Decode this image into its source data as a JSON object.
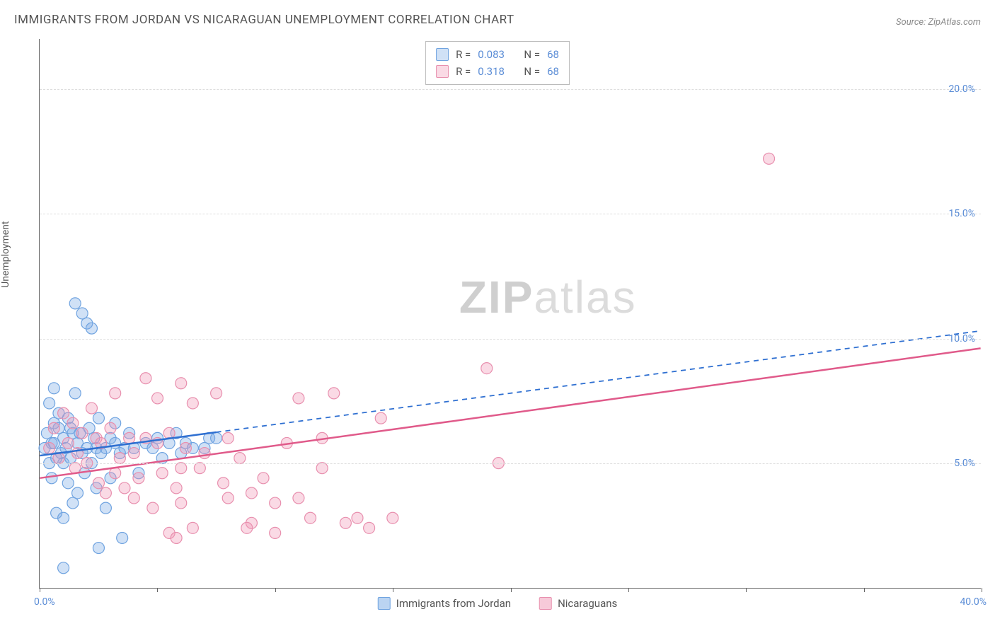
{
  "title": "IMMIGRANTS FROM JORDAN VS NICARAGUAN UNEMPLOYMENT CORRELATION CHART",
  "source": "Source: ZipAtlas.com",
  "ylabel": "Unemployment",
  "watermark": {
    "bold": "ZIP",
    "light": "atlas"
  },
  "type": "scatter",
  "xlim": [
    0,
    40
  ],
  "ylim": [
    0,
    22
  ],
  "ytick_positions": [
    5,
    10,
    15,
    20
  ],
  "ytick_labels": [
    "5.0%",
    "10.0%",
    "15.0%",
    "20.0%"
  ],
  "xtick_positions": [
    0,
    5,
    10,
    15,
    20,
    25,
    30,
    35,
    40
  ],
  "xaxis_min_label": "0.0%",
  "xaxis_max_label": "40.0%",
  "grid_color": "#dddddd",
  "axis_color": "#666666",
  "label_color": "#5b8dd6",
  "background": "#ffffff",
  "series": [
    {
      "name": "Immigrants from Jordan",
      "color_fill": "rgba(120,170,230,0.35)",
      "color_stroke": "#6fa3e0",
      "line_color": "#2e6fd1",
      "marker_radius": 8,
      "R": "0.083",
      "N": "68",
      "regression": {
        "x1": 0,
        "y1": 5.3,
        "x2": 40,
        "y2": 10.3,
        "solid_until_x": 7.5
      },
      "points": [
        [
          0.2,
          5.6
        ],
        [
          0.3,
          6.2
        ],
        [
          0.4,
          5.0
        ],
        [
          0.4,
          7.4
        ],
        [
          0.5,
          5.8
        ],
        [
          0.5,
          4.4
        ],
        [
          0.6,
          6.6
        ],
        [
          0.6,
          8.0
        ],
        [
          0.7,
          5.2
        ],
        [
          0.7,
          3.0
        ],
        [
          0.8,
          6.4
        ],
        [
          0.8,
          7.0
        ],
        [
          0.9,
          5.4
        ],
        [
          1.0,
          5.0
        ],
        [
          1.0,
          6.0
        ],
        [
          1.0,
          2.8
        ],
        [
          1.1,
          5.6
        ],
        [
          1.2,
          6.8
        ],
        [
          1.2,
          4.2
        ],
        [
          1.3,
          5.2
        ],
        [
          1.4,
          3.4
        ],
        [
          1.4,
          6.2
        ],
        [
          1.5,
          7.8
        ],
        [
          1.5,
          11.4
        ],
        [
          1.6,
          5.8
        ],
        [
          1.6,
          3.8
        ],
        [
          1.7,
          6.2
        ],
        [
          1.8,
          11.0
        ],
        [
          1.8,
          5.4
        ],
        [
          1.9,
          4.6
        ],
        [
          2.0,
          5.6
        ],
        [
          2.0,
          10.6
        ],
        [
          2.1,
          6.4
        ],
        [
          2.2,
          5.0
        ],
        [
          2.2,
          10.4
        ],
        [
          2.3,
          6.0
        ],
        [
          2.4,
          5.6
        ],
        [
          2.4,
          4.0
        ],
        [
          2.5,
          6.8
        ],
        [
          2.6,
          5.4
        ],
        [
          2.8,
          5.6
        ],
        [
          2.8,
          3.2
        ],
        [
          3.0,
          6.0
        ],
        [
          3.0,
          4.4
        ],
        [
          3.2,
          5.8
        ],
        [
          3.2,
          6.6
        ],
        [
          3.4,
          5.4
        ],
        [
          3.5,
          2.0
        ],
        [
          3.6,
          5.6
        ],
        [
          3.8,
          6.2
        ],
        [
          4.0,
          5.6
        ],
        [
          4.2,
          4.6
        ],
        [
          4.5,
          5.8
        ],
        [
          4.8,
          5.6
        ],
        [
          5.0,
          6.0
        ],
        [
          5.2,
          5.2
        ],
        [
          5.5,
          5.8
        ],
        [
          5.8,
          6.2
        ],
        [
          6.0,
          5.4
        ],
        [
          6.2,
          5.8
        ],
        [
          6.5,
          5.6
        ],
        [
          7.0,
          5.6
        ],
        [
          7.2,
          6.0
        ],
        [
          7.5,
          6.0
        ],
        [
          1.0,
          0.8
        ],
        [
          2.5,
          1.6
        ],
        [
          0.6,
          5.8
        ],
        [
          1.3,
          6.4
        ]
      ]
    },
    {
      "name": "Nicaraguans",
      "color_fill": "rgba(240,150,180,0.35)",
      "color_stroke": "#e88fae",
      "line_color": "#e05a8a",
      "marker_radius": 8,
      "R": "0.318",
      "N": "68",
      "regression": {
        "x1": 0,
        "y1": 4.4,
        "x2": 40,
        "y2": 9.6,
        "solid_until_x": 40
      },
      "points": [
        [
          0.4,
          5.6
        ],
        [
          0.6,
          6.4
        ],
        [
          0.8,
          5.2
        ],
        [
          1.0,
          7.0
        ],
        [
          1.2,
          5.8
        ],
        [
          1.4,
          6.6
        ],
        [
          1.5,
          4.8
        ],
        [
          1.6,
          5.4
        ],
        [
          1.8,
          6.2
        ],
        [
          2.0,
          5.0
        ],
        [
          2.2,
          7.2
        ],
        [
          2.4,
          6.0
        ],
        [
          2.5,
          4.2
        ],
        [
          2.6,
          5.8
        ],
        [
          2.8,
          3.8
        ],
        [
          3.0,
          6.4
        ],
        [
          3.2,
          4.6
        ],
        [
          3.2,
          7.8
        ],
        [
          3.4,
          5.2
        ],
        [
          3.6,
          4.0
        ],
        [
          3.8,
          6.0
        ],
        [
          4.0,
          3.6
        ],
        [
          4.0,
          5.4
        ],
        [
          4.2,
          4.4
        ],
        [
          4.5,
          8.4
        ],
        [
          4.5,
          6.0
        ],
        [
          4.8,
          3.2
        ],
        [
          5.0,
          5.8
        ],
        [
          5.0,
          7.6
        ],
        [
          5.2,
          4.6
        ],
        [
          5.5,
          2.2
        ],
        [
          5.5,
          6.2
        ],
        [
          5.8,
          4.0
        ],
        [
          6.0,
          8.2
        ],
        [
          6.0,
          3.4
        ],
        [
          6.2,
          5.6
        ],
        [
          6.5,
          7.4
        ],
        [
          6.5,
          2.4
        ],
        [
          6.8,
          4.8
        ],
        [
          7.0,
          5.4
        ],
        [
          7.5,
          7.8
        ],
        [
          7.8,
          4.2
        ],
        [
          8.0,
          3.6
        ],
        [
          8.0,
          6.0
        ],
        [
          8.5,
          5.2
        ],
        [
          9.0,
          3.8
        ],
        [
          9.0,
          2.6
        ],
        [
          9.5,
          4.4
        ],
        [
          10.0,
          3.4
        ],
        [
          10.0,
          2.2
        ],
        [
          10.5,
          5.8
        ],
        [
          11.0,
          7.6
        ],
        [
          11.0,
          3.6
        ],
        [
          11.5,
          2.8
        ],
        [
          12.0,
          6.0
        ],
        [
          12.5,
          7.8
        ],
        [
          13.0,
          2.6
        ],
        [
          13.5,
          2.8
        ],
        [
          14.0,
          2.4
        ],
        [
          14.5,
          6.8
        ],
        [
          15.0,
          2.8
        ],
        [
          19.0,
          8.8
        ],
        [
          19.5,
          5.0
        ],
        [
          31.0,
          17.2
        ],
        [
          5.8,
          2.0
        ],
        [
          8.8,
          2.4
        ],
        [
          12.0,
          4.8
        ],
        [
          6.0,
          4.8
        ]
      ]
    }
  ],
  "bottom_legend": [
    {
      "label": "Immigrants from Jordan",
      "fill": "rgba(120,170,230,0.5)",
      "border": "#6fa3e0"
    },
    {
      "label": "Nicaraguans",
      "fill": "rgba(240,150,180,0.5)",
      "border": "#e88fae"
    }
  ]
}
